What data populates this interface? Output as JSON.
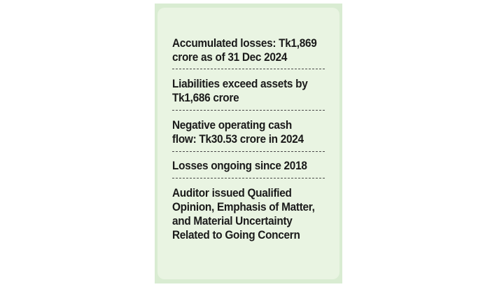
{
  "facts": [
    {
      "line1": "Accumulated losses: Tk1,869",
      "line2": "crore as of 31 Dec 2024"
    },
    {
      "line1": "Liabilities exceed assets by",
      "line2": "Tk1,686 crore"
    },
    {
      "line1": "Negative operating cash",
      "line2": "flow: Tk30.53 crore in 2024"
    },
    {
      "line1": "Losses ongoing since 2018"
    },
    {
      "line1": "Auditor issued Qualified",
      "line2": "Opinion, Emphasis of Matter,",
      "line3": "and Material Uncertainty",
      "line4": "Related to Going Concern"
    }
  ],
  "colors": {
    "card_border": "#d9ecd2",
    "card_background": "#e9f4e2",
    "text": "#1a1a1a",
    "divider": "#4a4a4a"
  }
}
